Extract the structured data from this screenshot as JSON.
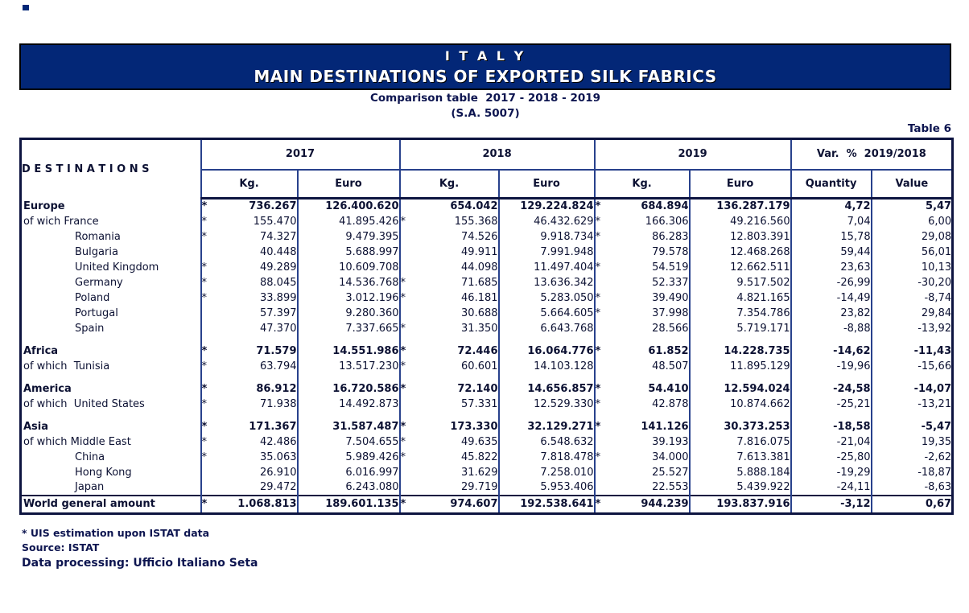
{
  "colors": {
    "banner_bg": "#032777",
    "table_line": "#28418c",
    "table_line_dark": "#0d1440",
    "text": "#0c1133"
  },
  "banner": {
    "title": "I T A L Y",
    "subtitle": "MAIN DESTINATIONS OF EXPORTED SILK FABRICS"
  },
  "subheader": {
    "line1": "Comparison table  2017 - 2018 - 2019",
    "line2": "(S.A. 5007)"
  },
  "table_label": "Table 6",
  "table": {
    "dest_header": "D E S T I N A T I O N S",
    "year_headers": {
      "y2017": "2017",
      "y2018": "2018",
      "y2019": "2019"
    },
    "var_header": "Var.  %  2019/2018",
    "sub_headers": {
      "kg": "Kg.",
      "euro": "Euro",
      "quantity": "Quantity",
      "value": "Value"
    },
    "estimation_mark": "*",
    "rows": [
      {
        "label": "Europe",
        "bold": true,
        "cols": [
          [
            "*",
            "736.267",
            "126.400.620"
          ],
          [
            "",
            "654.042",
            "129.224.824"
          ],
          [
            "*",
            "684.894",
            "136.287.179"
          ]
        ],
        "var": [
          "4,72",
          "5,47"
        ]
      },
      {
        "label": "of wich France",
        "cols": [
          [
            "*",
            "155.470",
            "41.895.426"
          ],
          [
            "*",
            "155.368",
            "46.432.629"
          ],
          [
            "*",
            "166.306",
            "49.216.560"
          ]
        ],
        "var": [
          "7,04",
          "6,00"
        ]
      },
      {
        "label": "Romania",
        "indent": 66,
        "cols": [
          [
            "*",
            "74.327",
            "9.479.395"
          ],
          [
            "",
            "74.526",
            "9.918.734"
          ],
          [
            "*",
            "86.283",
            "12.803.391"
          ]
        ],
        "var": [
          "15,78",
          "29,08"
        ]
      },
      {
        "label": "Bulgaria",
        "indent": 66,
        "cols": [
          [
            "",
            "40.448",
            "5.688.997"
          ],
          [
            "",
            "49.911",
            "7.991.948"
          ],
          [
            "",
            "79.578",
            "12.468.268"
          ]
        ],
        "var": [
          "59,44",
          "56,01"
        ]
      },
      {
        "label": "United Kingdom",
        "indent": 66,
        "cols": [
          [
            "*",
            "49.289",
            "10.609.708"
          ],
          [
            "",
            "44.098",
            "11.497.404"
          ],
          [
            "*",
            "54.519",
            "12.662.511"
          ]
        ],
        "var": [
          "23,63",
          "10,13"
        ]
      },
      {
        "label": "Germany",
        "indent": 66,
        "cols": [
          [
            "*",
            "88.045",
            "14.536.768"
          ],
          [
            "*",
            "71.685",
            "13.636.342"
          ],
          [
            "",
            "52.337",
            "9.517.502"
          ]
        ],
        "var": [
          "-26,99",
          "-30,20"
        ]
      },
      {
        "label": "Poland",
        "indent": 66,
        "cols": [
          [
            "*",
            "33.899",
            "3.012.196"
          ],
          [
            "*",
            "46.181",
            "5.283.050"
          ],
          [
            "*",
            "39.490",
            "4.821.165"
          ]
        ],
        "var": [
          "-14,49",
          "-8,74"
        ]
      },
      {
        "label": "Portugal",
        "indent": 66,
        "cols": [
          [
            "",
            "57.397",
            "9.280.360"
          ],
          [
            "",
            "30.688",
            "5.664.605"
          ],
          [
            "*",
            "37.998",
            "7.354.786"
          ]
        ],
        "var": [
          "23,82",
          "29,84"
        ]
      },
      {
        "label": "Spain",
        "indent": 66,
        "cols": [
          [
            "",
            "47.370",
            "7.337.665"
          ],
          [
            "*",
            "31.350",
            "6.643.768"
          ],
          [
            "",
            "28.566",
            "5.719.171"
          ]
        ],
        "var": [
          "-8,88",
          "-13,92"
        ]
      },
      {
        "spacer": true
      },
      {
        "label": "Africa",
        "bold": true,
        "cols": [
          [
            "*",
            "71.579",
            "14.551.986"
          ],
          [
            "*",
            "72.446",
            "16.064.776"
          ],
          [
            "*",
            "61.852",
            "14.228.735"
          ]
        ],
        "var": [
          "-14,62",
          "-11,43"
        ]
      },
      {
        "label": "of which  Tunisia",
        "cols": [
          [
            "*",
            "63.794",
            "13.517.230"
          ],
          [
            "*",
            "60.601",
            "14.103.128"
          ],
          [
            "",
            "48.507",
            "11.895.129"
          ]
        ],
        "var": [
          "-19,96",
          "-15,66"
        ]
      },
      {
        "spacer": true
      },
      {
        "label": "America",
        "bold": true,
        "cols": [
          [
            "*",
            "86.912",
            "16.720.586"
          ],
          [
            "*",
            "72.140",
            "14.656.857"
          ],
          [
            "*",
            "54.410",
            "12.594.024"
          ]
        ],
        "var": [
          "-24,58",
          "-14,07"
        ]
      },
      {
        "label": "of which  United States",
        "cols": [
          [
            "*",
            "71.938",
            "14.492.873"
          ],
          [
            "",
            "57.331",
            "12.529.330"
          ],
          [
            "*",
            "42.878",
            "10.874.662"
          ]
        ],
        "var": [
          "-25,21",
          "-13,21"
        ]
      },
      {
        "spacer": true
      },
      {
        "label": "Asia",
        "bold": true,
        "cols": [
          [
            "*",
            "171.367",
            "31.587.487"
          ],
          [
            "*",
            "173.330",
            "32.129.271"
          ],
          [
            "*",
            "141.126",
            "30.373.253"
          ]
        ],
        "var": [
          "-18,58",
          "-5,47"
        ]
      },
      {
        "label": "of which Middle East",
        "cols": [
          [
            "*",
            "42.486",
            "7.504.655"
          ],
          [
            "*",
            "49.635",
            "6.548.632"
          ],
          [
            "",
            "39.193",
            "7.816.075"
          ]
        ],
        "var": [
          "-21,04",
          "19,35"
        ]
      },
      {
        "label": "China",
        "indent": 66,
        "cols": [
          [
            "*",
            "35.063",
            "5.989.426"
          ],
          [
            "*",
            "45.822",
            "7.818.478"
          ],
          [
            "*",
            "34.000",
            "7.613.381"
          ]
        ],
        "var": [
          "-25,80",
          "-2,62"
        ]
      },
      {
        "label": "Hong Kong",
        "indent": 66,
        "cols": [
          [
            "",
            "26.910",
            "6.016.997"
          ],
          [
            "",
            "31.629",
            "7.258.010"
          ],
          [
            "",
            "25.527",
            "5.888.184"
          ]
        ],
        "var": [
          "-19,29",
          "-18,87"
        ]
      },
      {
        "label": "Japan",
        "indent": 66,
        "cols": [
          [
            "",
            "29.472",
            "6.243.080"
          ],
          [
            "",
            "29.719",
            "5.953.406"
          ],
          [
            "",
            "22.553",
            "5.439.922"
          ]
        ],
        "var": [
          "-24,11",
          "-8,63"
        ]
      },
      {
        "label": "World general amount",
        "bold": true,
        "total": true,
        "cols": [
          [
            "*",
            "1.068.813",
            "189.601.135"
          ],
          [
            "*",
            "974.607",
            "192.538.641"
          ],
          [
            "*",
            "944.239",
            "193.837.916"
          ]
        ],
        "var": [
          "-3,12",
          "0,67"
        ]
      }
    ]
  },
  "footnotes": {
    "line1": "* UIS estimation upon ISTAT data",
    "line2": "Source: ISTAT",
    "line3": "Data processing: Ufficio Italiano Seta"
  }
}
